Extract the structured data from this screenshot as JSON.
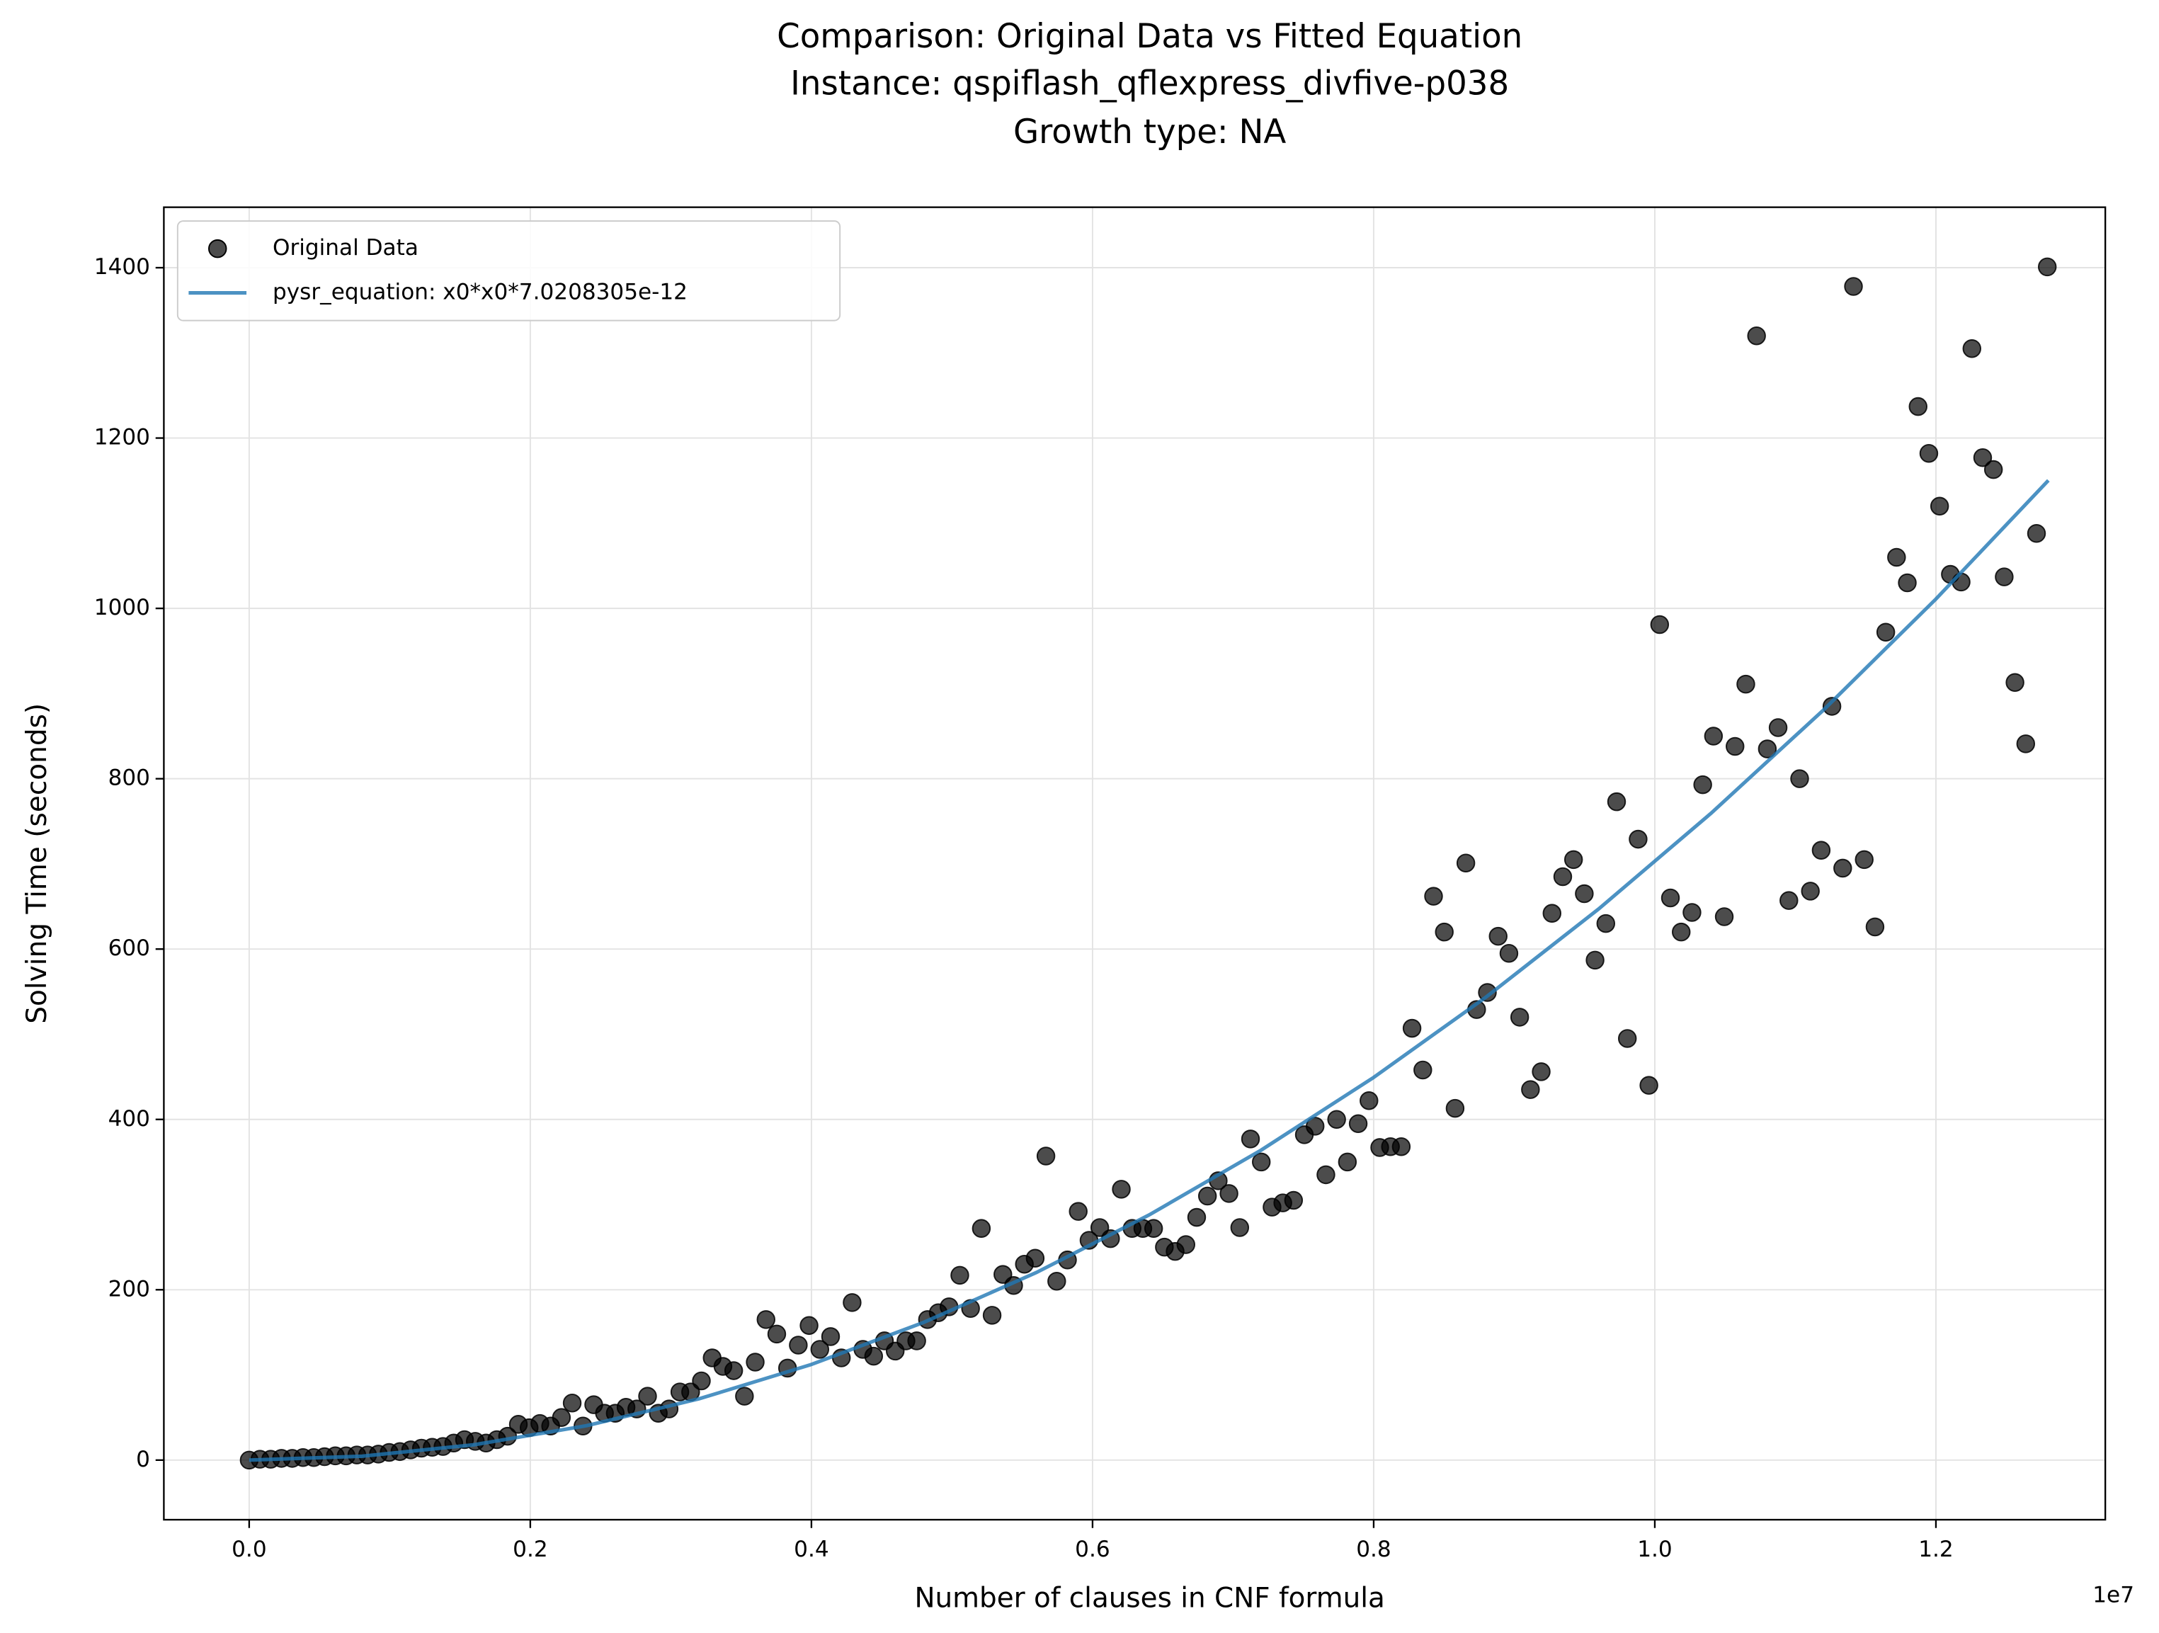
{
  "chart_data": {
    "type": "scatter",
    "title": [
      "Comparison: Original Data vs Fitted Equation",
      "Instance: qspiflash_qflexpress_divfive-p038",
      "Growth type: NA"
    ],
    "xlabel": "Number of clauses in CNF formula",
    "ylabel": "Solving Time (seconds)",
    "x_offset_label": "1e7",
    "xlim": [
      -607000,
      13205000
    ],
    "ylim": [
      -70,
      1471
    ],
    "xticks": [
      {
        "value": 0,
        "label": "0.0"
      },
      {
        "value": 2000000,
        "label": "0.2"
      },
      {
        "value": 4000000,
        "label": "0.4"
      },
      {
        "value": 6000000,
        "label": "0.6"
      },
      {
        "value": 8000000,
        "label": "0.8"
      },
      {
        "value": 10000000,
        "label": "1.0"
      },
      {
        "value": 12000000,
        "label": "1.2"
      }
    ],
    "yticks": [
      0,
      200,
      400,
      600,
      800,
      1000,
      1200,
      1400
    ],
    "grid": true,
    "legend": "upper left",
    "series": [
      {
        "name": "Original Data",
        "type": "scatter",
        "color": "#000000",
        "x": [
          0,
          76600,
          153200,
          229800,
          306400,
          383000,
          459600,
          536200,
          612800,
          689400,
          766000,
          842600,
          919200,
          995800,
          1072400,
          1149000,
          1225600,
          1302200,
          1378800,
          1455400,
          1532000,
          1608600,
          1685200,
          1761800,
          1838400,
          1915000,
          1991600,
          2068200,
          2144800,
          2221400,
          2298000,
          2374600,
          2451200,
          2527800,
          2604400,
          2681000,
          2757600,
          2834200,
          2910800,
          2987400,
          3064000,
          3140600,
          3217200,
          3293800,
          3370400,
          3447000,
          3523600,
          3600200,
          3676800,
          3753400,
          3830000,
          3906600,
          3983200,
          4059800,
          4136400,
          4213000,
          4289600,
          4366200,
          4442800,
          4519400,
          4596000,
          4672600,
          4749200,
          4825800,
          4902400,
          4979000,
          5055600,
          5132200,
          5208800,
          5285400,
          5362000,
          5438600,
          5515200,
          5591800,
          5668400,
          5745000,
          5821600,
          5898200,
          5974800,
          6051400,
          6128000,
          6204600,
          6281200,
          6357800,
          6434400,
          6511000,
          6587600,
          6664200,
          6740800,
          6817400,
          6894000,
          6970600,
          7047200,
          7123800,
          7200400,
          7277000,
          7353600,
          7430200,
          7506800,
          7583400,
          7660000,
          7736600,
          7813200,
          7889800,
          7966400,
          8043000,
          8119600,
          8196200,
          8272800,
          8349400,
          8426000,
          8502600,
          8579200,
          8655800,
          8732400,
          8809000,
          8885600,
          8962200,
          9038800,
          9115400,
          9192000,
          9268600,
          9345200,
          9421800,
          9498400,
          9575000,
          9651600,
          9728200,
          9804800,
          9881400,
          9958000,
          10034600,
          10111200,
          10187800,
          10264400,
          10341000,
          10417600,
          10494200,
          10570800,
          10647400,
          10724000,
          10800600,
          10877200,
          10953800,
          11030400,
          11107000,
          11183600,
          11260200,
          11336800,
          11413400,
          11490000,
          11566600,
          11643200,
          11719800,
          11796400,
          11873000,
          11949600,
          12026200,
          12102800,
          12179400,
          12256000,
          12332600,
          12409200,
          12485800,
          12562400,
          12639000,
          12715600,
          12792200
        ],
        "values": [
          0,
          1,
          1,
          2,
          2,
          3,
          3,
          4,
          5,
          5,
          6,
          6,
          7,
          9,
          10,
          12,
          14,
          15,
          16,
          20,
          24,
          22,
          20,
          24,
          28,
          42,
          38,
          43,
          40,
          50,
          67,
          40,
          65,
          55,
          55,
          62,
          60,
          75,
          55,
          60,
          80,
          80,
          93,
          120,
          110,
          105,
          75,
          115,
          165,
          148,
          108,
          135,
          158,
          130,
          145,
          120,
          185,
          130,
          122,
          140,
          128,
          140,
          140,
          165,
          173,
          180,
          217,
          178,
          272,
          170,
          218,
          205,
          230,
          237,
          357,
          210,
          235,
          292,
          258,
          273,
          260,
          318,
          272,
          272,
          272,
          250,
          245,
          253,
          285,
          310,
          328,
          313,
          273,
          377,
          350,
          297,
          302,
          305,
          382,
          392,
          335,
          400,
          350,
          395,
          422,
          367,
          368,
          368,
          507,
          458,
          662,
          620,
          413,
          701,
          529,
          549,
          615,
          595,
          520,
          435,
          456,
          642,
          685,
          705,
          665,
          587,
          630,
          773,
          495,
          729,
          440,
          981,
          660,
          620,
          643,
          793,
          850,
          638,
          838,
          911,
          1320,
          835,
          860,
          657,
          800,
          668,
          716,
          885,
          695,
          1378,
          705,
          626,
          972,
          1060,
          1030,
          1237,
          1182,
          1120,
          1040,
          1031,
          1305,
          1177,
          1163,
          1037,
          913,
          841,
          1088,
          1401
        ]
      },
      {
        "name": "pysr_equation: x0*x0*7.0208305e-12",
        "type": "line",
        "color": "#1f77b4",
        "x": [
          0,
          800000,
          1600000,
          2400000,
          3200000,
          4000000,
          4800000,
          5600000,
          6400000,
          7200000,
          8000000,
          8800000,
          9600000,
          10400000,
          11200000,
          12000000,
          12800000
        ],
        "values": [
          0,
          4.5,
          18.0,
          40.4,
          71.9,
          112.3,
          161.8,
          220.2,
          287.6,
          364.0,
          449.3,
          543.7,
          647.0,
          759.4,
          880.7,
          1011.0,
          1150.3
        ]
      }
    ]
  }
}
